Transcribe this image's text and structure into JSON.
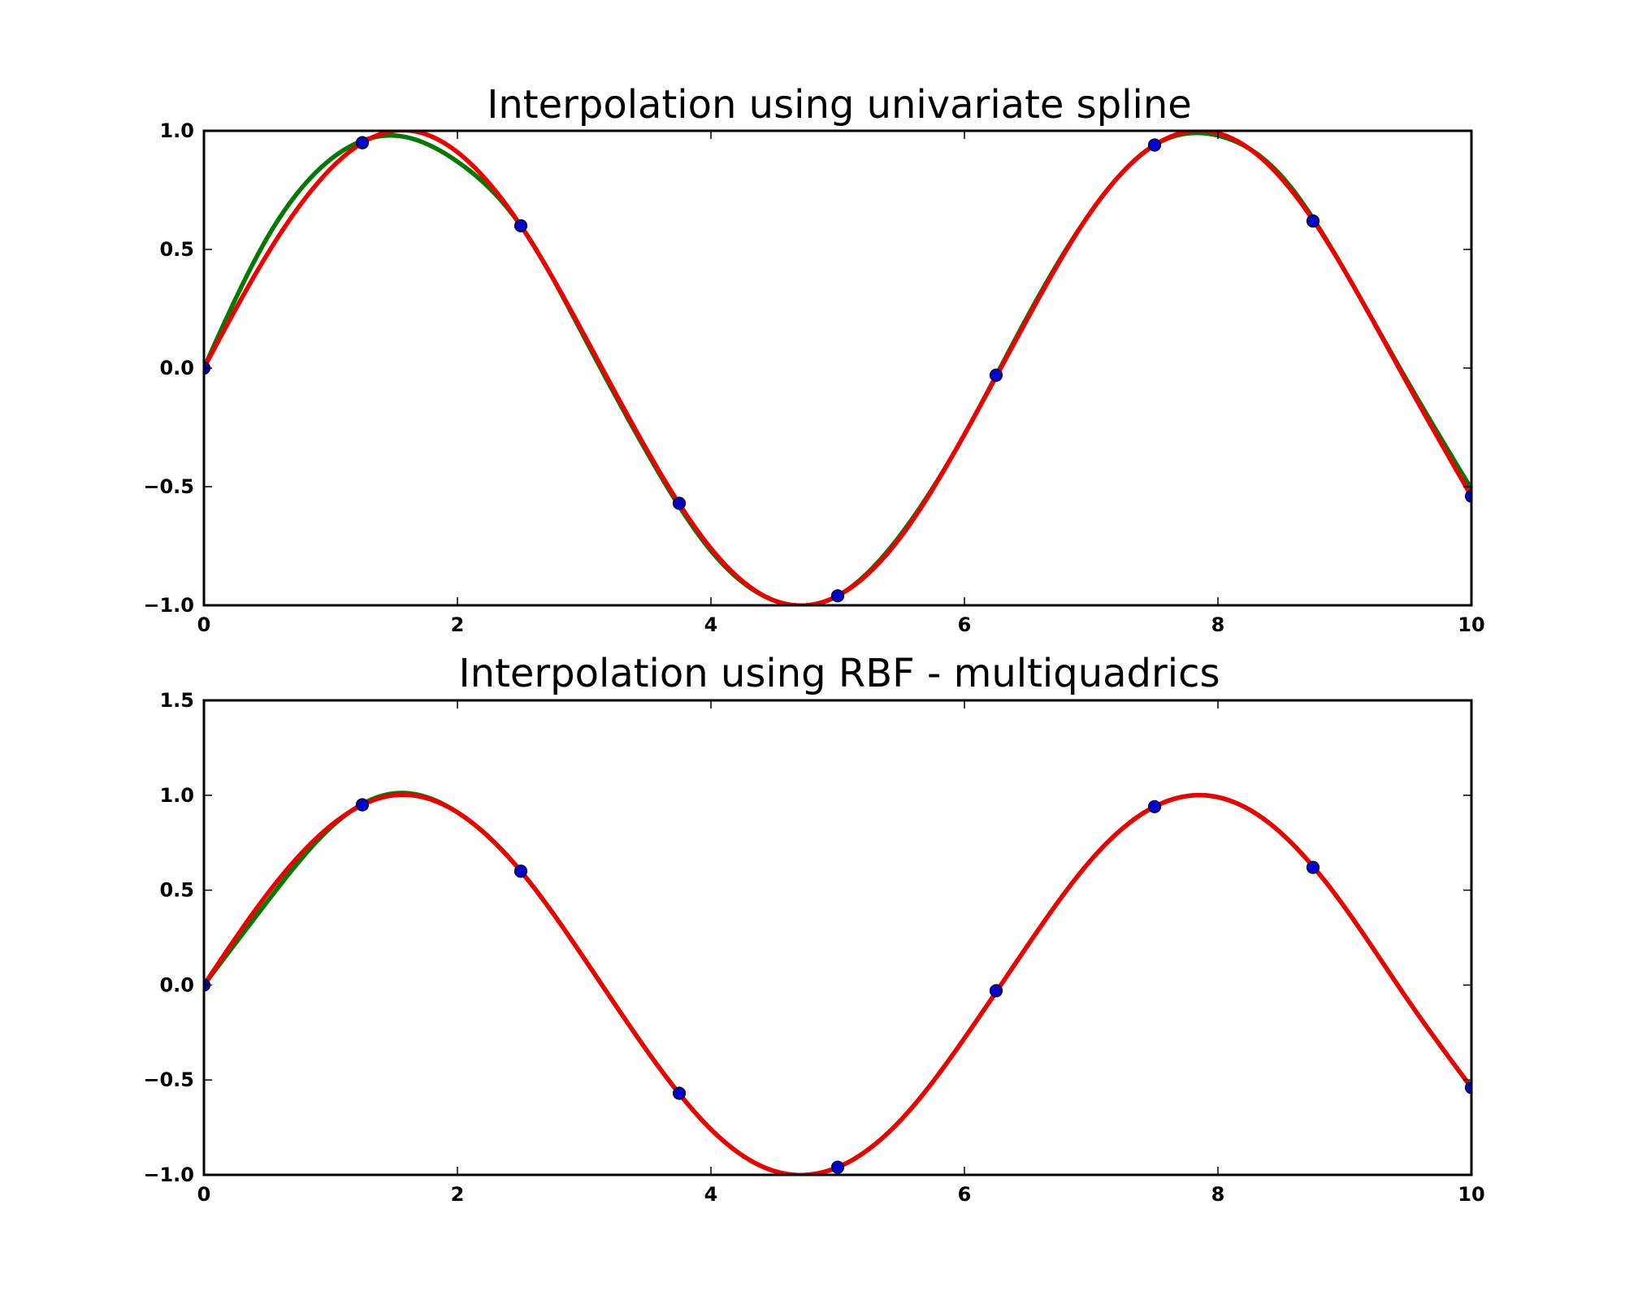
{
  "chart_data": [
    {
      "type": "line",
      "title": "Interpolation using univariate spline",
      "xlim": [
        0,
        10
      ],
      "ylim": [
        -1.0,
        1.0
      ],
      "xticks": [
        "0",
        "2",
        "4",
        "6",
        "8",
        "10"
      ],
      "yticks": [
        "1.0",
        "0.5",
        "0.0",
        "−0.5",
        "−1.0"
      ],
      "ytick_values": [
        1.0,
        0.5,
        0.0,
        -0.5,
        -1.0
      ],
      "xtick_values": [
        0,
        2,
        4,
        6,
        8,
        10
      ],
      "points": {
        "x": [
          0,
          1.25,
          2.5,
          3.75,
          5.0,
          6.25,
          7.5,
          8.75,
          10
        ],
        "y": [
          0.0,
          0.95,
          0.6,
          -0.57,
          -0.96,
          -0.03,
          0.94,
          0.62,
          -0.54
        ],
        "color": "#0000cc"
      },
      "series": [
        {
          "color": "#007a00",
          "x": [
            0,
            0.5,
            1.0,
            1.5,
            2.0,
            2.5,
            3.0,
            3.5,
            4.0,
            4.5,
            5.0,
            5.5,
            6.0,
            6.5,
            7.0,
            7.5,
            8.0,
            8.5,
            9.0,
            9.5,
            10.0
          ],
          "y": [
            0.0,
            0.55,
            0.88,
            0.98,
            0.87,
            0.6,
            0.13,
            -0.36,
            -0.77,
            -0.98,
            -0.96,
            -0.7,
            -0.28,
            0.22,
            0.66,
            0.94,
            0.98,
            0.81,
            0.41,
            -0.06,
            -0.51
          ]
        },
        {
          "color": "#ee0000",
          "x": [
            0,
            0.5,
            1.0,
            1.5,
            2.0,
            2.5,
            3.0,
            3.5,
            4.0,
            4.5,
            5.0,
            5.5,
            6.0,
            6.5,
            7.0,
            7.5,
            8.0,
            8.5,
            9.0,
            9.5,
            10.0
          ],
          "y": [
            0.0,
            0.48,
            0.84,
            1.0,
            0.91,
            0.6,
            0.14,
            -0.35,
            -0.76,
            -0.98,
            -0.96,
            -0.71,
            -0.28,
            0.21,
            0.66,
            0.94,
            0.99,
            0.8,
            0.41,
            -0.07,
            -0.54
          ]
        }
      ]
    },
    {
      "type": "line",
      "title": "Interpolation using RBF - multiquadrics",
      "xlim": [
        0,
        10
      ],
      "ylim": [
        -1.0,
        1.5
      ],
      "xticks": [
        "0",
        "2",
        "4",
        "6",
        "8",
        "10"
      ],
      "yticks": [
        "1.5",
        "1.0",
        "0.5",
        "0.0",
        "−0.5",
        "−1.0"
      ],
      "ytick_values": [
        1.5,
        1.0,
        0.5,
        0.0,
        -0.5,
        -1.0
      ],
      "xtick_values": [
        0,
        2,
        4,
        6,
        8,
        10
      ],
      "points": {
        "x": [
          0,
          1.25,
          2.5,
          3.75,
          5.0,
          6.25,
          7.5,
          8.75,
          10
        ],
        "y": [
          0.0,
          0.95,
          0.6,
          -0.57,
          -0.96,
          -0.03,
          0.94,
          0.62,
          -0.54
        ],
        "color": "#0000cc"
      },
      "series": [
        {
          "color": "#007a00",
          "x": [
            0,
            0.5,
            1.0,
            1.5,
            2.0,
            2.5,
            3.0,
            3.5,
            4.0,
            4.5,
            5.0,
            5.5,
            6.0,
            6.5,
            7.0,
            7.5,
            8.0,
            8.5,
            9.0,
            9.5,
            10.0
          ],
          "y": [
            0.0,
            0.44,
            0.83,
            1.01,
            0.91,
            0.6,
            0.14,
            -0.35,
            -0.76,
            -0.98,
            -0.96,
            -0.71,
            -0.28,
            0.21,
            0.66,
            0.94,
            0.99,
            0.8,
            0.41,
            -0.08,
            -0.54
          ]
        },
        {
          "color": "#ee0000",
          "x": [
            0,
            0.5,
            1.0,
            1.5,
            2.0,
            2.5,
            3.0,
            3.5,
            4.0,
            4.5,
            5.0,
            5.5,
            6.0,
            6.5,
            7.0,
            7.5,
            8.0,
            8.5,
            9.0,
            9.5,
            10.0
          ],
          "y": [
            0.0,
            0.48,
            0.84,
            1.0,
            0.91,
            0.6,
            0.14,
            -0.35,
            -0.76,
            -0.98,
            -0.96,
            -0.71,
            -0.28,
            0.21,
            0.66,
            0.94,
            0.99,
            0.8,
            0.41,
            -0.08,
            -0.54
          ]
        }
      ]
    }
  ]
}
